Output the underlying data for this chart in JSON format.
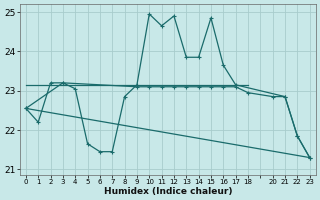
{
  "bg_color": "#c8e8e8",
  "grid_color": "#a8cccc",
  "line_color": "#1a6b6b",
  "xlabel": "Humidex (Indice chaleur)",
  "xlim": [
    -0.5,
    23.5
  ],
  "ylim": [
    20.85,
    25.2
  ],
  "yticks": [
    21,
    22,
    23,
    24,
    25
  ],
  "xtick_positions": [
    0,
    1,
    2,
    3,
    4,
    5,
    6,
    7,
    8,
    9,
    10,
    11,
    12,
    13,
    14,
    15,
    16,
    17,
    18,
    19,
    20,
    21,
    22,
    23
  ],
  "xtick_labels": [
    "0",
    "1",
    "2",
    "3",
    "4",
    "5",
    "6",
    "7",
    "8",
    "9",
    "10",
    "11",
    "12",
    "13",
    "14",
    "15",
    "16",
    "17",
    "18",
    "",
    "20",
    "21",
    "22",
    "23"
  ],
  "series1_x": [
    0,
    1,
    2,
    3,
    4,
    5,
    6,
    7,
    8,
    9,
    10,
    11,
    12,
    13,
    14,
    15,
    16,
    17,
    21,
    22,
    23
  ],
  "series1_y": [
    22.55,
    22.2,
    23.2,
    23.2,
    23.05,
    21.65,
    21.45,
    21.45,
    22.85,
    23.15,
    24.95,
    24.65,
    24.9,
    23.85,
    23.85,
    24.85,
    23.65,
    23.15,
    22.85,
    21.85,
    21.3
  ],
  "series2_x": [
    0,
    3,
    9,
    10,
    11,
    12,
    13,
    14,
    15,
    16,
    17,
    18,
    20,
    21,
    22,
    23
  ],
  "series2_y": [
    22.55,
    23.2,
    23.1,
    23.1,
    23.1,
    23.1,
    23.1,
    23.1,
    23.1,
    23.1,
    23.1,
    22.95,
    22.85,
    22.85,
    21.85,
    21.3
  ],
  "series3_x": [
    0,
    3,
    17,
    18
  ],
  "series3_y": [
    23.15,
    23.15,
    23.15,
    23.15
  ],
  "series4_x": [
    0,
    23
  ],
  "series4_y": [
    22.55,
    21.3
  ]
}
